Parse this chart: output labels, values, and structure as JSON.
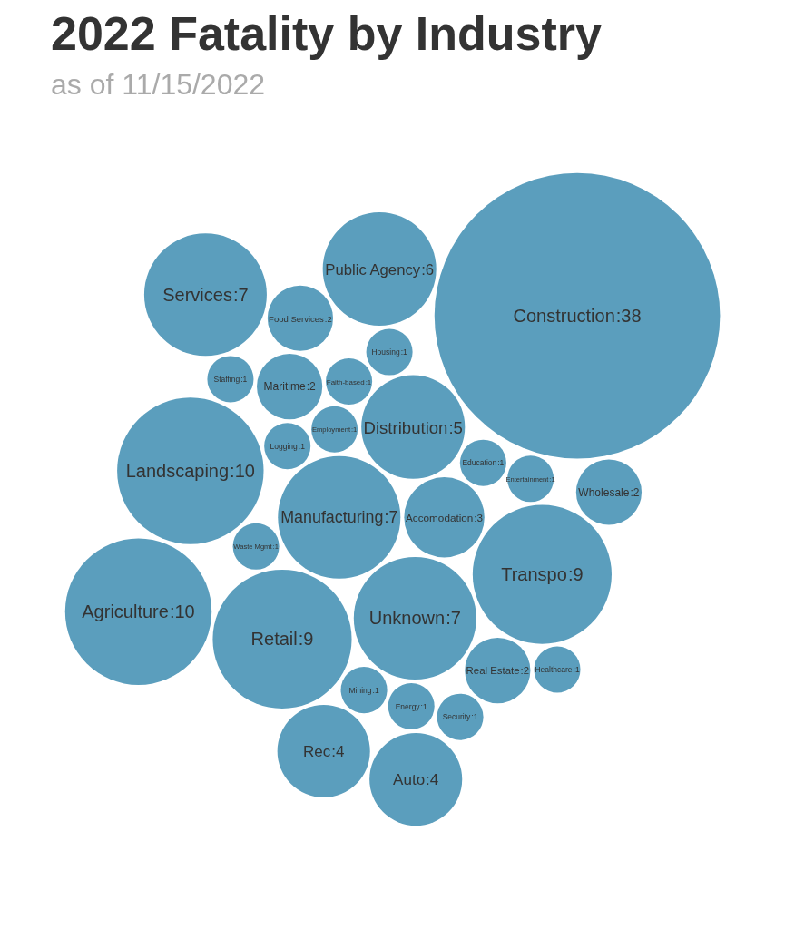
{
  "chart_data": {
    "type": "other",
    "title": "2022 Fatality by Industry",
    "subtitle": "as of 11/15/2022",
    "color": "#5b9ebd",
    "categories": [
      "Manufacturing",
      "Accomodation",
      "Unknown",
      "Distribution",
      "Employment",
      "Retail",
      "Education",
      "Transpo",
      "Logging",
      "Waste Mgmt",
      "Faith-based",
      "Entertainment",
      "Landscaping",
      "Construction",
      "Maritime",
      "Mining",
      "Housing",
      "Real Estate",
      "Agriculture",
      "Staffing",
      "Public Agency",
      "Food Services",
      "Energy",
      "Wholesale",
      "Security",
      "Rec",
      "Healthcare",
      "Auto",
      "Services"
    ],
    "values": [
      7,
      3,
      7,
      5,
      1,
      9,
      1,
      9,
      1,
      1,
      1,
      1,
      10,
      38,
      2,
      1,
      1,
      2,
      10,
      1,
      6,
      2,
      1,
      2,
      1,
      4,
      1,
      4,
      7
    ],
    "value_labels": [
      ":7",
      ":3",
      ":7",
      ":5",
      ":1",
      ":9",
      ":1",
      ":9",
      ":1",
      ":1",
      ":1",
      ":1",
      ":10",
      ":38",
      ":2",
      ":1",
      ":1",
      ":2",
      ":10",
      ":1",
      ":6",
      ":2",
      ":1",
      ":2",
      ":1",
      ":4",
      ":1",
      ":4",
      ":7"
    ]
  }
}
